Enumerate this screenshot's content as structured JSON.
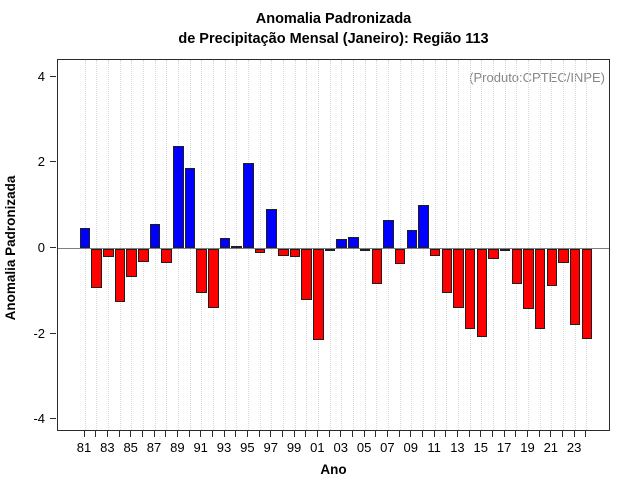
{
  "title": {
    "line1": "Anomalia Padronizada",
    "line2": "de Precipitação Mensal (Janeiro): Região 113"
  },
  "annotation": "(Produto:CPTEC/INPE)",
  "axes": {
    "y_label": "Anomalia Padronizada",
    "x_label": "Ano",
    "y_ticks": [
      4,
      2,
      0,
      -2,
      -4
    ],
    "x_tick_labels": [
      "81",
      "83",
      "85",
      "87",
      "89",
      "91",
      "93",
      "95",
      "97",
      "99",
      "01",
      "03",
      "05",
      "07",
      "09",
      "11",
      "13",
      "15",
      "17",
      "19",
      "21",
      "23"
    ]
  },
  "colors": {
    "positive_bar": "#0000ff",
    "negative_bar": "#ff0000",
    "bar_border": "#1f1f1f",
    "zero_line": "#7f7f7f",
    "gridline": "#d8d8d8",
    "annotation_text": "#878787"
  },
  "chart_data": {
    "type": "bar",
    "title": "Anomalia Padronizada de Precipitação Mensal (Janeiro): Região 113",
    "xlabel": "Ano",
    "ylabel": "Anomalia Padronizada",
    "ylim": [
      -4.4,
      4.4
    ],
    "grid": "vertical-dotted",
    "legend": "none",
    "annotation": "(Produto:CPTEC/INPE)",
    "color_rule": "blue if value >= 0, red if value < 0",
    "categories": [
      "81",
      "82",
      "83",
      "84",
      "85",
      "86",
      "87",
      "88",
      "89",
      "90",
      "91",
      "92",
      "93",
      "94",
      "95",
      "96",
      "97",
      "98",
      "99",
      "00",
      "01",
      "02",
      "03",
      "04",
      "05",
      "06",
      "07",
      "08",
      "09",
      "10",
      "11",
      "12",
      "13",
      "14",
      "15",
      "16",
      "17",
      "18",
      "19",
      "20",
      "21",
      "22",
      "23",
      "24"
    ],
    "values": [
      0.47,
      -0.93,
      -0.2,
      -1.24,
      -0.67,
      -0.32,
      0.58,
      -0.34,
      2.39,
      1.87,
      -1.03,
      -1.38,
      0.25,
      0.06,
      2.0,
      -0.11,
      0.93,
      -0.17,
      -0.2,
      -1.21,
      -2.13,
      -0.07,
      0.22,
      0.27,
      -0.07,
      -0.82,
      0.66,
      -0.37,
      0.43,
      1.01,
      -0.17,
      -1.03,
      -1.4,
      -1.88,
      -2.07,
      -0.25,
      -0.06,
      -0.84,
      -1.42,
      -1.88,
      -0.87,
      -0.35,
      -1.79,
      -2.12
    ]
  }
}
